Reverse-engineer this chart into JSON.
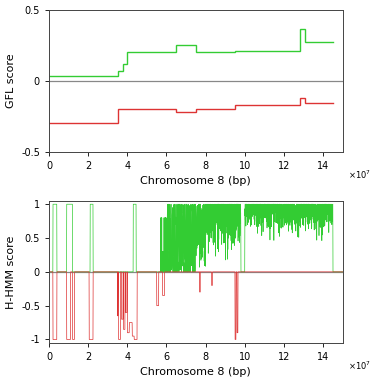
{
  "xlim": [
    0,
    150000000.0
  ],
  "xticks": [
    0,
    20000000.0,
    40000000.0,
    60000000.0,
    80000000.0,
    100000000.0,
    120000000.0,
    140000000.0
  ],
  "xticklabels": [
    "0",
    "2",
    "4",
    "6",
    "8",
    "10",
    "12",
    "14"
  ],
  "xlabel": "Chromosome 8 (bp)",
  "gfl_ylim": [
    -0.5,
    0.5
  ],
  "gfl_yticks": [
    -0.5,
    0,
    0.5
  ],
  "gfl_ylabel": "GFL score",
  "gfl_green_x": [
    0,
    35000000.0,
    35000000.0,
    38000000.0,
    38000000.0,
    40000000.0,
    40000000.0,
    65000000.0,
    65000000.0,
    75000000.0,
    75000000.0,
    95000000.0,
    95000000.0,
    128000000.0,
    128000000.0,
    131000000.0,
    131000000.0,
    145000000.0
  ],
  "gfl_green_y": [
    0.03,
    0.03,
    0.07,
    0.07,
    0.12,
    0.12,
    0.2,
    0.2,
    0.25,
    0.25,
    0.2,
    0.2,
    0.21,
    0.21,
    0.36,
    0.36,
    0.27,
    0.27
  ],
  "gfl_red_x": [
    0,
    35000000.0,
    35000000.0,
    65000000.0,
    65000000.0,
    75000000.0,
    75000000.0,
    95000000.0,
    95000000.0,
    128000000.0,
    128000000.0,
    131000000.0,
    131000000.0,
    145000000.0
  ],
  "gfl_red_y": [
    -0.3,
    -0.3,
    -0.2,
    -0.2,
    -0.22,
    -0.22,
    -0.2,
    -0.2,
    -0.175,
    -0.175,
    -0.125,
    -0.125,
    -0.155,
    -0.155
  ],
  "hhmm_ylim": [
    -1.05,
    1.05
  ],
  "hhmm_yticks": [
    -1,
    -0.5,
    0,
    0.5,
    1
  ],
  "hhmm_ylabel": "H-HMM score",
  "green_color": "#33cc33",
  "red_color": "#dd3333",
  "zero_line_color": "#888888",
  "bg_color": "#ffffff",
  "tick_fontsize": 7,
  "label_fontsize": 8
}
